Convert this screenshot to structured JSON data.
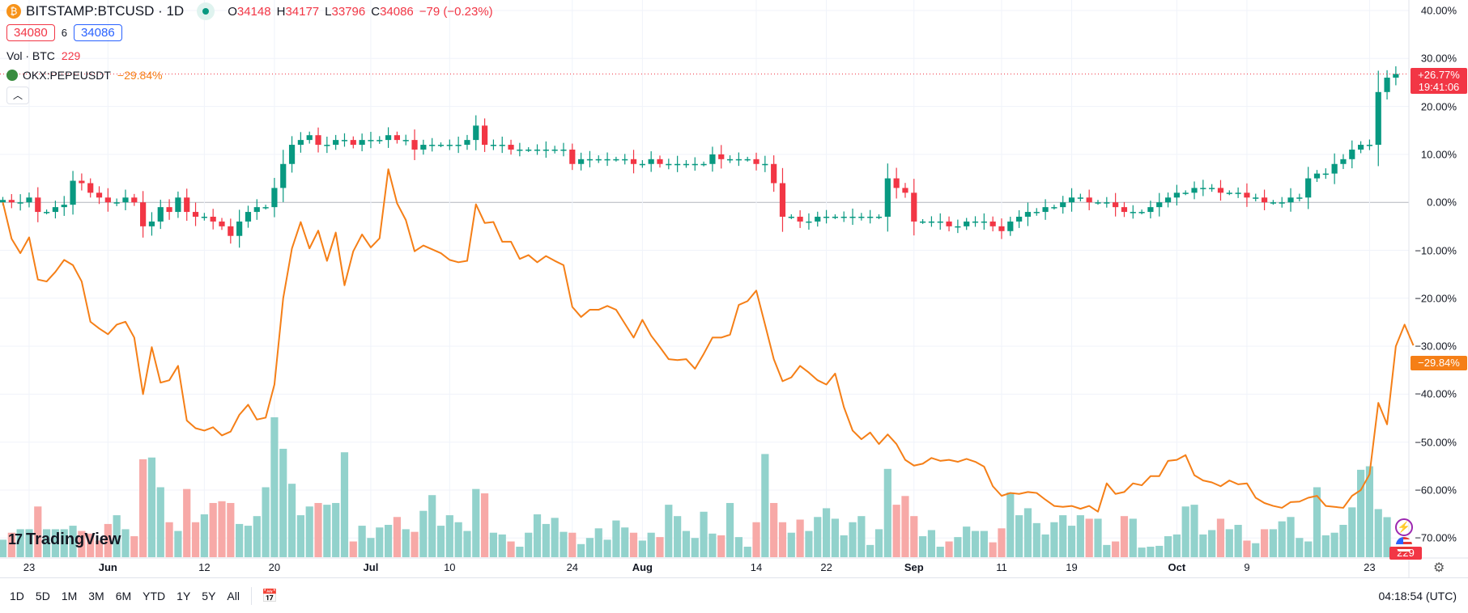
{
  "header": {
    "symbol": "BITSTAMP:BTCUSD · 1D",
    "o_label": "O",
    "o": "34148",
    "h_label": "H",
    "h": "34177",
    "l_label": "L",
    "l": "33796",
    "c_label": "C",
    "c": "34086",
    "change": "−79 (−0.23%)",
    "bid": "34080",
    "spread": "6",
    "ask": "34086",
    "vol_label": "Vol · BTC",
    "vol_value": "229",
    "compare_symbol": "OKX:PEPEUSDT",
    "compare_value": "−29.84%"
  },
  "axis_labels": [
    "40.00%",
    "30.00%",
    "20.00%",
    "10.00%",
    "0.00%",
    "−10.00%",
    "−20.00%",
    "−30.00%",
    "−40.00%",
    "−50.00%",
    "−60.00%",
    "−70.00%"
  ],
  "tags": {
    "btc": "+26.77%",
    "btc_countdown": "19:41:06",
    "pepe": "−29.84%",
    "volume": "229"
  },
  "time_labels": [
    {
      "t": "23",
      "d": 3
    },
    {
      "t": "Jun",
      "d": 12
    },
    {
      "t": "12",
      "d": 23
    },
    {
      "t": "20",
      "d": 31
    },
    {
      "t": "Jul",
      "d": 42
    },
    {
      "t": "10",
      "d": 51
    },
    {
      "t": "24",
      "d": 65
    },
    {
      "t": "Aug",
      "d": 73
    },
    {
      "t": "14",
      "d": 86
    },
    {
      "t": "22",
      "d": 94
    },
    {
      "t": "Sep",
      "d": 104
    },
    {
      "t": "11",
      "d": 114
    },
    {
      "t": "19",
      "d": 122
    },
    {
      "t": "Oct",
      "d": 134
    },
    {
      "t": "9",
      "d": 142
    },
    {
      "t": "23",
      "d": 156
    }
  ],
  "toolbar": {
    "ranges": [
      "1D",
      "5D",
      "1M",
      "3M",
      "6M",
      "YTD",
      "1Y",
      "5Y",
      "All"
    ],
    "clock": "04:18:54 (UTC)"
  },
  "logo": "TradingView",
  "colors": {
    "up": "#089981",
    "down": "#f23645",
    "vol_up": "#92d2cc",
    "vol_down": "#f7a9a7",
    "pepe": "#f57f17"
  },
  "chart_data": {
    "type": "candlestick+line+volume",
    "x_start": "May 20",
    "ylim": [
      -70,
      40
    ],
    "y_unit": "%",
    "btc_close": [
      0.5,
      0,
      0,
      1,
      -2,
      -2,
      -1,
      -0.5,
      4.5,
      4,
      2,
      1,
      0,
      0,
      1,
      0,
      -5,
      -4,
      -1,
      -2,
      1,
      -2,
      -3,
      -3,
      -4,
      -5,
      -7,
      -4,
      -2,
      -1,
      -1,
      3,
      8,
      12,
      13,
      14,
      12,
      12,
      13,
      13,
      12,
      13,
      13,
      13,
      14,
      13,
      13,
      11,
      12,
      12,
      12,
      12,
      12,
      13,
      16,
      12,
      12,
      12,
      11,
      11,
      11,
      11,
      11,
      11,
      11,
      8,
      9,
      9,
      9,
      9,
      9,
      9,
      8,
      8,
      9,
      8,
      8,
      8,
      8,
      8,
      8,
      10,
      9,
      9,
      9,
      9,
      8,
      8,
      4,
      -3,
      -3,
      -4,
      -4,
      -3,
      -3,
      -3,
      -3,
      -3,
      -3,
      -3,
      -3,
      5,
      3,
      2,
      -4,
      -4,
      -4,
      -4,
      -5,
      -5,
      -4,
      -4,
      -4,
      -5,
      -6,
      -4,
      -3,
      -2,
      -2,
      -1,
      -1,
      0,
      1,
      1,
      0,
      0,
      0,
      -1,
      -2,
      -2,
      -2,
      -1,
      0,
      1,
      2,
      2,
      3,
      3,
      3,
      2,
      2,
      2,
      1,
      1,
      0,
      0,
      0,
      1,
      1,
      5,
      6,
      6,
      8,
      9,
      11,
      12,
      12,
      23,
      26,
      26.77
    ],
    "pepe": [
      0,
      -7.6,
      -10.6,
      -7.3,
      -16.1,
      -16.5,
      -14.5,
      -12,
      -13.1,
      -16.5,
      -24.9,
      -26.3,
      -27.5,
      -25.5,
      -24.9,
      -28.2,
      -40,
      -30.2,
      -37.6,
      -37.1,
      -34.1,
      -45.5,
      -47.1,
      -47.6,
      -46.9,
      -48.6,
      -47.8,
      -44.3,
      -42.2,
      -45.3,
      -44.9,
      -38,
      -20,
      -9.6,
      -4.1,
      -9.6,
      -5.9,
      -12.2,
      -6.3,
      -17.3,
      -10.2,
      -6.7,
      -9.4,
      -7.5,
      6.9,
      -0.2,
      -3.7,
      -10.2,
      -9,
      -9.8,
      -10.6,
      -12,
      -12.5,
      -12.2,
      -0.4,
      -4.3,
      -4.1,
      -8.2,
      -8.2,
      -11.8,
      -11,
      -12.5,
      -11.2,
      -12.2,
      -13.1,
      -21.8,
      -23.9,
      -22.4,
      -22.4,
      -21.6,
      -22.4,
      -25.3,
      -28.2,
      -24.5,
      -27.8,
      -30.2,
      -32.7,
      -32.9,
      -32.7,
      -34.7,
      -31.6,
      -28.2,
      -28.2,
      -27.6,
      -21.4,
      -20.6,
      -18.4,
      -25.5,
      -32.7,
      -37.3,
      -36.5,
      -34.1,
      -35.5,
      -37.1,
      -38,
      -35.7,
      -42.7,
      -47.6,
      -49.4,
      -48,
      -50.4,
      -48.4,
      -50.4,
      -53.7,
      -54.9,
      -54.5,
      -53.3,
      -53.9,
      -53.7,
      -54.1,
      -53.5,
      -54.1,
      -55.1,
      -59.2,
      -61.2,
      -60.6,
      -60.8,
      -60.4,
      -60.6,
      -62,
      -63.3,
      -63.5,
      -63.3,
      -63.9,
      -63.3,
      -64.5,
      -58.6,
      -60.8,
      -60.4,
      -58.6,
      -59,
      -57.1,
      -57.1,
      -53.9,
      -53.7,
      -52.7,
      -56.9,
      -58,
      -58.4,
      -59.2,
      -58,
      -58.8,
      -58.6,
      -61.6,
      -62.7,
      -63.3,
      -63.7,
      -62.5,
      -62.4,
      -61.6,
      -61.2,
      -63.3,
      -63.5,
      -63.7,
      -61.2,
      -60,
      -56.7,
      -41.8,
      -46.3,
      -30,
      -25.5,
      -29.84
    ],
    "volume": [
      100,
      140,
      160,
      160,
      290,
      160,
      160,
      160,
      180,
      150,
      135,
      95,
      190,
      240,
      160,
      120,
      560,
      570,
      400,
      200,
      150,
      390,
      200,
      245,
      310,
      320,
      310,
      190,
      180,
      235,
      400,
      800,
      620,
      420,
      240,
      290,
      310,
      300,
      310,
      600,
      90,
      180,
      110,
      170,
      185,
      230,
      160,
      145,
      265,
      355,
      180,
      240,
      200,
      150,
      390,
      365,
      140,
      130,
      90,
      60,
      140,
      245,
      190,
      225,
      145,
      140,
      75,
      110,
      165,
      100,
      210,
      170,
      140,
      95,
      140,
      115,
      300,
      235,
      150,
      110,
      260,
      135,
      125,
      310,
      115,
      60,
      200,
      590,
      310,
      200,
      140,
      215,
      150,
      230,
      280,
      220,
      125,
      200,
      235,
      70,
      160,
      505,
      300,
      350,
      235,
      120,
      155,
      60,
      90,
      115,
      175,
      150,
      150,
      85,
      165,
      370,
      240,
      280,
      195,
      130,
      200,
      240,
      180,
      240,
      220,
      220,
      70,
      90,
      235,
      220,
      55,
      60,
      65,
      120,
      130,
      290,
      300,
      130,
      155,
      220,
      160,
      185,
      95,
      80,
      160,
      160,
      205,
      230,
      110,
      90,
      400,
      125,
      140,
      185,
      285,
      500,
      520,
      275,
      229
    ]
  }
}
